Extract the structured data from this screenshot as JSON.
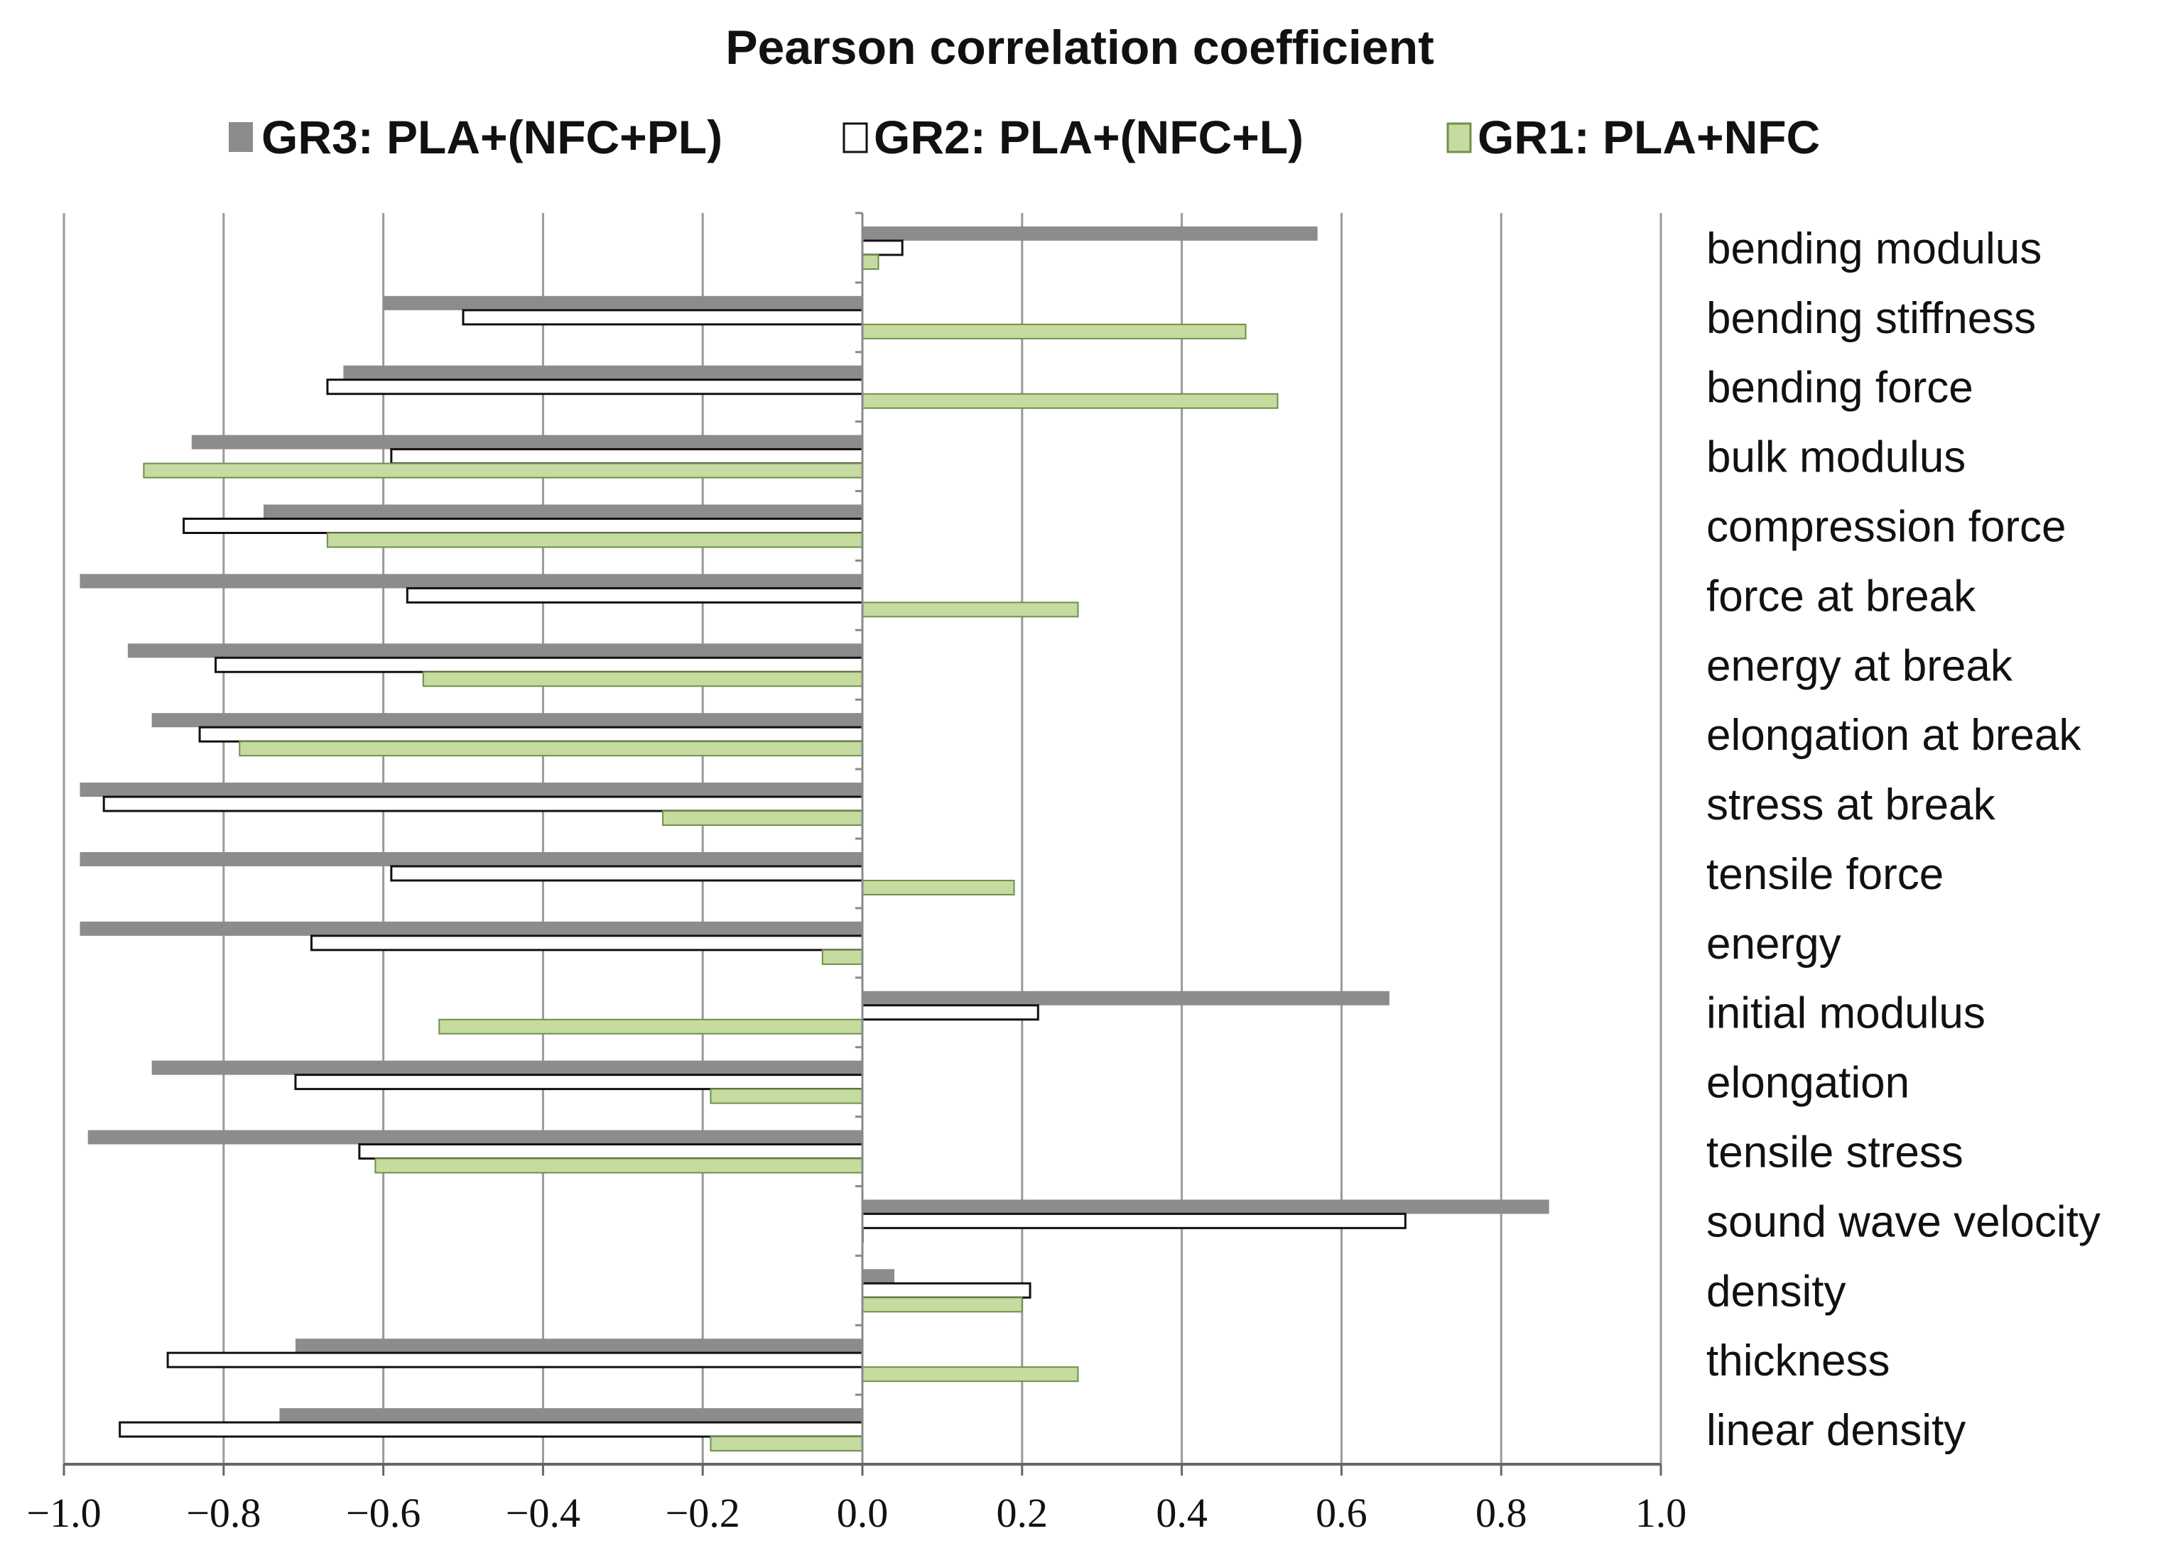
{
  "chart_data": {
    "type": "bar",
    "orientation": "horizontal",
    "title": "Pearson correlation coefficient",
    "xlim": [
      -1.0,
      1.0
    ],
    "ticks": [
      "-1.0",
      "-0.8",
      "-0.6",
      "-0.4",
      "-0.2",
      "0.0",
      "0.2",
      "0.4",
      "0.6",
      "0.8",
      "1.0"
    ],
    "tick_values": [
      -1.0,
      -0.8,
      -0.6,
      -0.4,
      -0.2,
      0.0,
      0.2,
      0.4,
      0.6,
      0.8,
      1.0
    ],
    "grid": true,
    "legend_position": "top",
    "categories": [
      "bending modulus",
      "bending stiffness",
      "bending force",
      "bulk modulus",
      "compression force",
      "force at break",
      "energy at break",
      "elongation at break",
      "stress at break",
      "tensile force",
      "energy",
      "initial modulus",
      "elongation",
      "tensile stress",
      "sound wave velocity",
      "density",
      "thickness",
      "linear density"
    ],
    "series": [
      {
        "name": "GR3: PLA+(NFC+PL)",
        "color": "#8c8c8c",
        "style": "filled",
        "values": [
          0.57,
          -0.6,
          -0.65,
          -0.84,
          -0.75,
          -0.98,
          -0.92,
          -0.89,
          -0.98,
          -0.98,
          -0.98,
          0.66,
          -0.89,
          -0.97,
          0.86,
          0.04,
          -0.71,
          -0.73
        ]
      },
      {
        "name": "GR2: PLA+(NFC+L)",
        "color": "#ffffff",
        "style": "outline",
        "values": [
          0.05,
          -0.5,
          -0.67,
          -0.59,
          -0.85,
          -0.57,
          -0.81,
          -0.83,
          -0.95,
          -0.59,
          -0.69,
          0.22,
          -0.71,
          -0.63,
          0.68,
          0.21,
          -0.87,
          -0.93
        ]
      },
      {
        "name": "GR1: PLA+NFC",
        "color": "#c5dba0",
        "style": "filled",
        "values": [
          0.02,
          0.48,
          0.52,
          -0.9,
          -0.67,
          0.27,
          -0.55,
          -0.78,
          -0.25,
          0.19,
          -0.05,
          -0.53,
          -0.19,
          -0.61,
          0.0,
          0.2,
          0.27,
          -0.19
        ]
      }
    ]
  }
}
